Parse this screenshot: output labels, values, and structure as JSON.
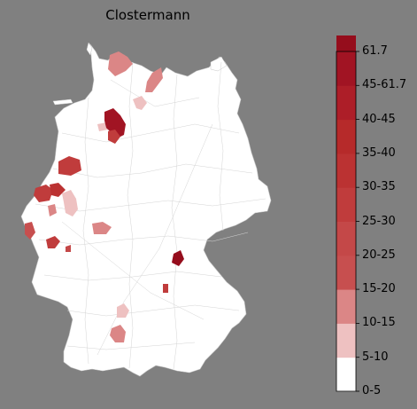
{
  "title": "Clostermann",
  "legend": {
    "ticks": [
      "61.7",
      "45-61.7",
      "40-45",
      "35-40",
      "30-35",
      "25-30",
      "20-25",
      "15-20",
      "10-15",
      "5-10",
      "0-5"
    ],
    "bins": [
      {
        "label": "0-5",
        "color": "#ffffff"
      },
      {
        "label": "5-10",
        "color": "#eec1c1"
      },
      {
        "label": "10-15",
        "color": "#db8686"
      },
      {
        "label": "15-20",
        "color": "#c74f4f"
      },
      {
        "label": "20-25",
        "color": "#c44848"
      },
      {
        "label": "25-30",
        "color": "#c03c3c"
      },
      {
        "label": "30-35",
        "color": "#bb3232"
      },
      {
        "label": "35-40",
        "color": "#b62a2a"
      },
      {
        "label": "40-45",
        "color": "#ad1e28"
      },
      {
        "label": "45-61.7",
        "color": "#a11423"
      },
      {
        "label": "61.7",
        "color": "#950d1c"
      }
    ]
  },
  "regions_colors": {
    "background": "#808080",
    "land": "#ffffff",
    "border": "#d0d0d0"
  }
}
